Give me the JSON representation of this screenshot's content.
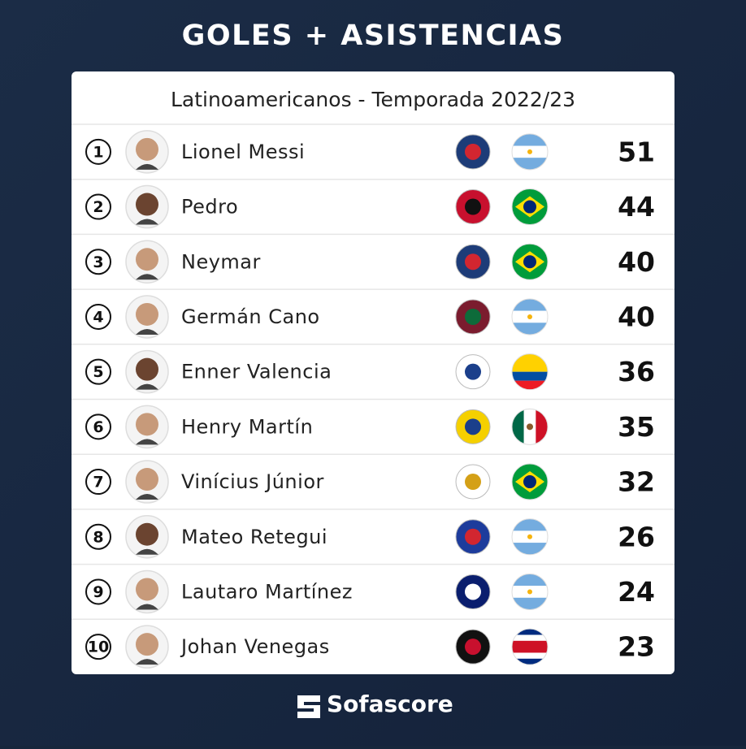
{
  "header": {
    "title": "GOLES + ASISTENCIAS",
    "subtitle": "Latinoamericanos - Temporada 2022/23"
  },
  "table": {
    "rows": [
      {
        "rank": 1,
        "name": "Lionel Messi",
        "total": 51
      },
      {
        "rank": 2,
        "name": "Pedro",
        "total": 44
      },
      {
        "rank": 3,
        "name": "Neymar",
        "total": 40
      },
      {
        "rank": 4,
        "name": "Germán Cano",
        "total": 40
      },
      {
        "rank": 5,
        "name": "Enner Valencia",
        "total": 36
      },
      {
        "rank": 6,
        "name": "Henry Martín",
        "total": 35
      },
      {
        "rank": 7,
        "name": "Vinícius Júnior",
        "total": 32
      },
      {
        "rank": 8,
        "name": "Mateo Retegui",
        "total": 26
      },
      {
        "rank": 9,
        "name": "Lautaro Martínez",
        "total": 24
      },
      {
        "rank": 10,
        "name": "Johan Venegas",
        "total": 23
      }
    ]
  },
  "footer": {
    "brand": "Sofascore"
  }
}
